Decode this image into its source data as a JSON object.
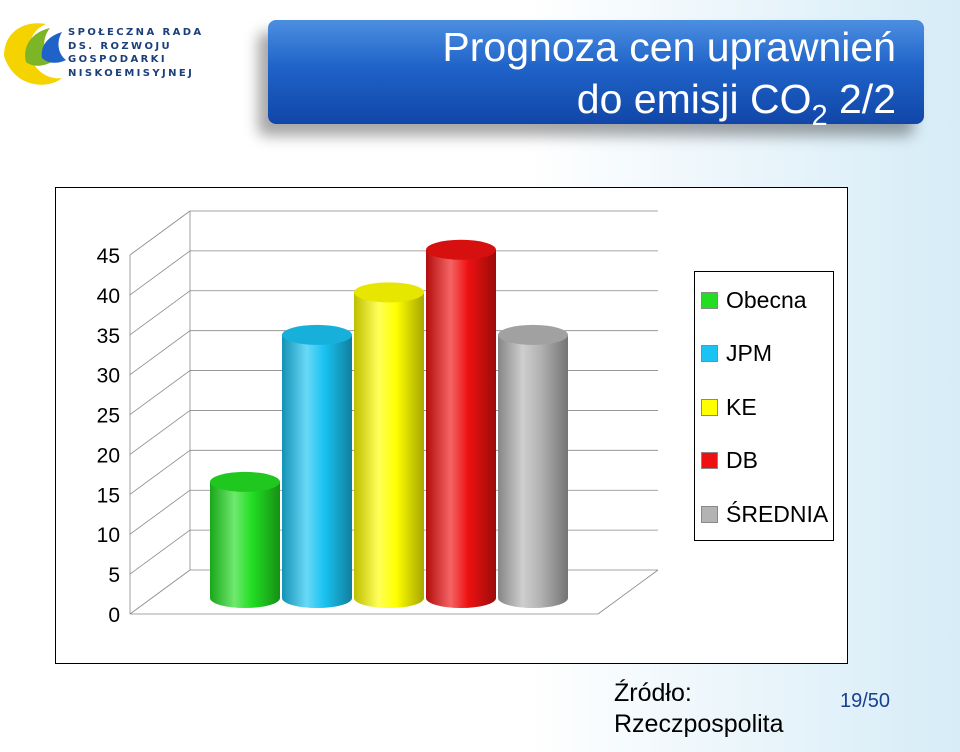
{
  "logo": {
    "lines": [
      "SPOŁECZNA RADA",
      "DS. ROZWOJU",
      "GOSPODARKI",
      "NISKOEMISYJNEJ"
    ]
  },
  "slide": {
    "title_line1": "Prognoza cen uprawnień",
    "title_line2_main": "do emisji CO",
    "title_line2_sub": "2",
    "title_line2_tail": " 2/2",
    "source_line1": "Źródło:",
    "source_line2": "Rzeczpospolita",
    "page_number": "19/50"
  },
  "colors": {
    "banner": "#1f63c9",
    "Obecna": "#22dd22",
    "JPM": "#19c3f2",
    "KE": "#ffff00",
    "DB": "#ee1111",
    "ŚREDNIA": "#b3b3b3"
  },
  "chart_data": {
    "type": "bar",
    "style": "3d-cylinder",
    "categories": [
      "Obecna",
      "JPM",
      "KE",
      "DB",
      "ŚREDNIA"
    ],
    "values": [
      15,
      34,
      39.5,
      45,
      34
    ],
    "y_ticks": [
      "0",
      "5",
      "10",
      "15",
      "20",
      "25",
      "30",
      "35",
      "40",
      "45"
    ],
    "ylim": [
      0,
      45
    ],
    "grid": true,
    "legend_position": "right",
    "legend": [
      "Obecna",
      "JPM",
      "KE",
      "DB",
      "ŚREDNIA"
    ]
  }
}
